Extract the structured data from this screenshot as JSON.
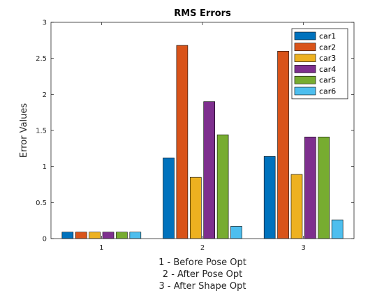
{
  "chart_data": {
    "type": "bar",
    "title": "RMS Errors",
    "ylabel": "Error Values",
    "xlabel_lines": [
      "1 - Before Pose Opt",
      "2 - After Pose Opt",
      "3 - After Shape Opt"
    ],
    "categories": [
      "1",
      "2",
      "3"
    ],
    "ylim": [
      0,
      3
    ],
    "yticks": [
      0,
      0.5,
      1,
      1.5,
      2,
      2.5,
      3
    ],
    "ytick_labels": [
      "0",
      "0.5",
      "1",
      "1.5",
      "2",
      "2.5",
      "3"
    ],
    "grid": false,
    "legend_position": "top-right",
    "series": [
      {
        "name": "car1",
        "color": "#0072BD",
        "values": [
          0.09,
          1.12,
          1.14
        ]
      },
      {
        "name": "car2",
        "color": "#D95319",
        "values": [
          0.09,
          2.68,
          2.6
        ]
      },
      {
        "name": "car3",
        "color": "#EDB120",
        "values": [
          0.09,
          0.85,
          0.89
        ]
      },
      {
        "name": "car4",
        "color": "#7E2F8E",
        "values": [
          0.09,
          1.9,
          1.41
        ]
      },
      {
        "name": "car5",
        "color": "#77AC30",
        "values": [
          0.09,
          1.44,
          1.41
        ]
      },
      {
        "name": "car6",
        "color": "#4DBEEE",
        "values": [
          0.09,
          0.17,
          0.26
        ]
      }
    ]
  }
}
